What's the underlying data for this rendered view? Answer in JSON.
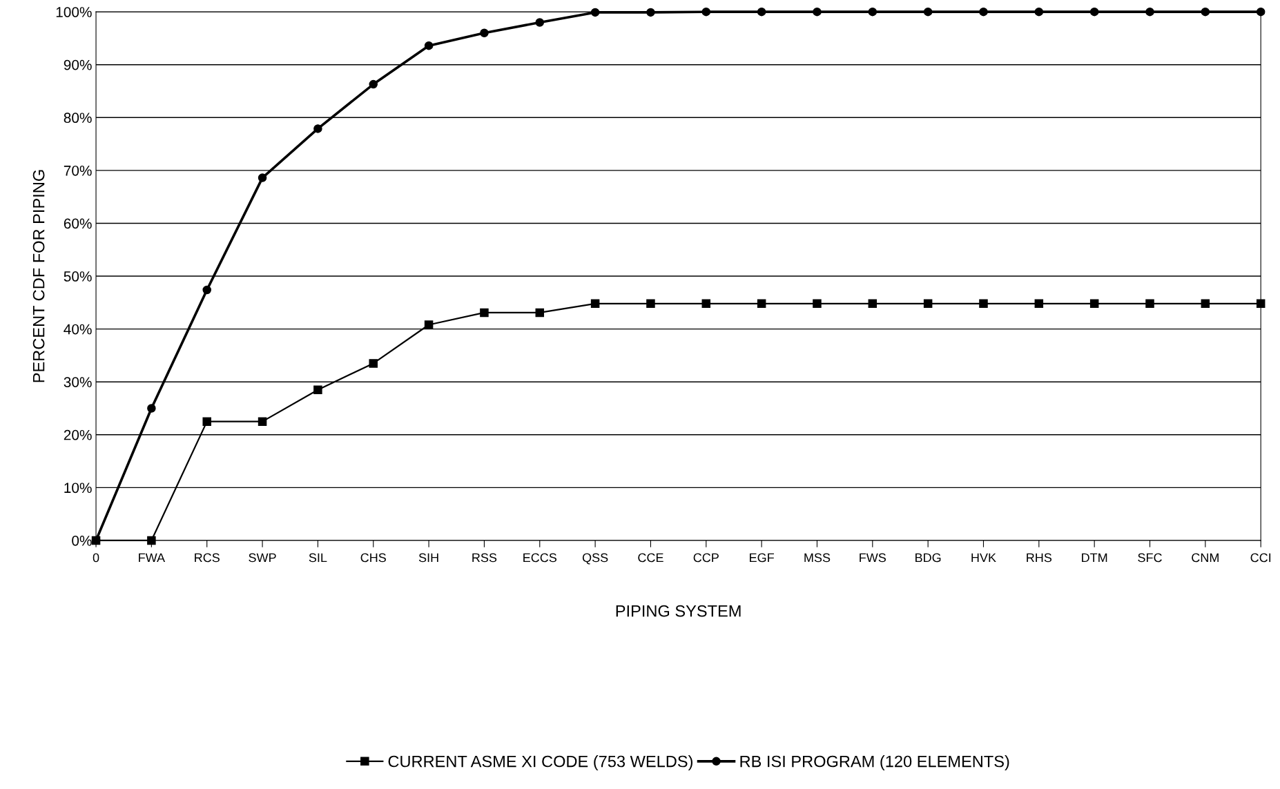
{
  "chart_data": {
    "type": "line",
    "xlabel": "PIPING SYSTEM",
    "ylabel": "PERCENT CDF FOR PIPING",
    "categories": [
      "0",
      "FWA",
      "RCS",
      "SWP",
      "SIL",
      "CHS",
      "SIH",
      "RSS",
      "ECCS",
      "QSS",
      "CCE",
      "CCP",
      "EGF",
      "MSS",
      "FWS",
      "BDG",
      "HVK",
      "RHS",
      "DTM",
      "SFC",
      "CNM",
      "CCI"
    ],
    "series": [
      {
        "name": "CURRENT ASME XI CODE (753 WELDS)",
        "color": "#000000",
        "marker": "square",
        "values": [
          0,
          0,
          22.5,
          22.5,
          28.5,
          33.5,
          40.8,
          43.1,
          43.1,
          44.8,
          44.8,
          44.8,
          44.8,
          44.8,
          44.8,
          44.8,
          44.8,
          44.8,
          44.8,
          44.8,
          44.8,
          44.8
        ]
      },
      {
        "name": "RB ISI PROGRAM (120 ELEMENTS)",
        "color": "#000000",
        "marker": "circle",
        "values": [
          0,
          25.0,
          47.4,
          68.6,
          77.9,
          86.3,
          93.6,
          96.0,
          98.0,
          99.9,
          99.9,
          100,
          100,
          100,
          100,
          100,
          100,
          100,
          100,
          100,
          100,
          100
        ]
      }
    ],
    "ylim": [
      0,
      100
    ],
    "yticks": [
      {
        "value": 0,
        "label": "0%"
      },
      {
        "value": 10,
        "label": "10%"
      },
      {
        "value": 20,
        "label": "20%"
      },
      {
        "value": 30,
        "label": "30%"
      },
      {
        "value": 40,
        "label": "40%"
      },
      {
        "value": 50,
        "label": "50%"
      },
      {
        "value": 60,
        "label": "60%"
      },
      {
        "value": 70,
        "label": "70%"
      },
      {
        "value": 80,
        "label": "80%"
      },
      {
        "value": 90,
        "label": "90%"
      },
      {
        "value": 100,
        "label": "100%"
      }
    ],
    "grid": "y",
    "legend": "bottom",
    "line_style": "solid"
  }
}
